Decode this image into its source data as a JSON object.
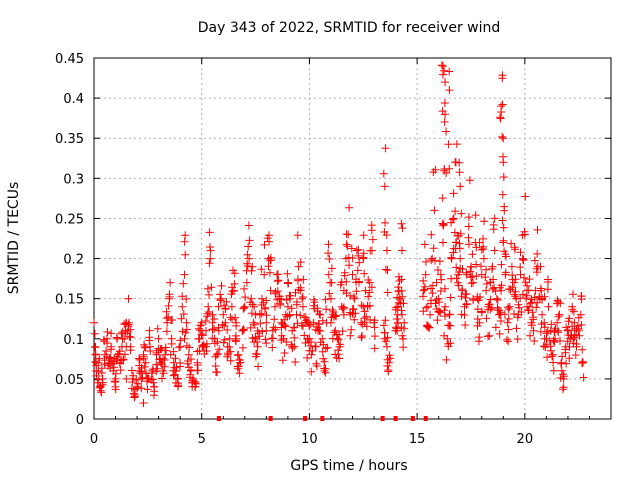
{
  "chart_data": {
    "type": "scatter",
    "title": "Day 343 of 2022, SRMTID for receiver wind",
    "xlabel": "GPS time / hours",
    "ylabel": "SRMTID / TECUs",
    "xlim": [
      0,
      24
    ],
    "ylim": [
      0,
      0.45
    ],
    "xticks": [
      0,
      5,
      10,
      15,
      20
    ],
    "xtick_labels": [
      "0",
      "5",
      "10",
      "15",
      "20"
    ],
    "yticks": [
      0,
      0.05,
      0.1,
      0.15,
      0.2,
      0.25,
      0.3,
      0.35,
      0.4,
      0.45
    ],
    "ytick_labels": [
      "0",
      "0.05",
      "0.1",
      "0.15",
      "0.2",
      "0.25",
      "0.3",
      "0.35",
      "0.4",
      "0.45"
    ],
    "grid": true,
    "marker": "+",
    "color": "#ff0000",
    "series": [
      {
        "name": "SRMTID",
        "x": [
          0.0,
          0.1,
          0.2,
          0.3,
          0.4,
          0.5,
          0.6,
          0.7,
          0.8,
          0.9,
          1.0,
          1.1,
          1.2,
          1.3,
          1.4,
          1.5,
          1.6,
          1.7,
          1.8,
          1.9,
          2.0,
          2.1,
          2.2,
          2.3,
          2.4,
          2.5,
          2.6,
          2.7,
          2.8,
          2.9,
          3.0,
          3.1,
          3.2,
          3.3,
          3.4,
          3.5,
          3.6,
          3.7,
          3.8,
          3.9,
          4.0,
          4.1,
          4.2,
          4.3,
          4.4,
          4.5,
          4.6,
          4.7,
          4.8,
          4.9,
          5.0,
          5.1,
          5.2,
          5.3,
          5.4,
          5.5,
          5.6,
          5.7,
          5.8,
          5.9,
          6.0,
          6.1,
          6.2,
          6.3,
          6.4,
          6.5,
          6.6,
          6.7,
          6.8,
          6.9,
          7.0,
          7.1,
          7.2,
          7.3,
          7.4,
          7.5,
          7.6,
          7.7,
          7.8,
          7.9,
          8.0,
          8.1,
          8.2,
          8.3,
          8.4,
          8.5,
          8.6,
          8.7,
          8.8,
          8.9,
          9.0,
          9.1,
          9.2,
          9.3,
          9.4,
          9.5,
          9.6,
          9.7,
          9.8,
          9.9,
          10.0,
          10.1,
          10.2,
          10.3,
          10.4,
          10.5,
          10.6,
          10.7,
          10.8,
          10.9,
          11.0,
          11.1,
          11.2,
          11.3,
          11.4,
          11.5,
          11.6,
          11.7,
          11.8,
          11.9,
          12.0,
          12.1,
          12.2,
          12.3,
          12.4,
          12.5,
          12.6,
          12.7,
          12.8,
          12.9,
          13.0,
          13.5,
          13.6,
          13.7,
          14.0,
          14.1,
          14.2,
          14.3,
          14.4,
          15.3,
          15.4,
          15.5,
          15.6,
          15.7,
          15.8,
          15.9,
          16.0,
          16.1,
          16.2,
          16.3,
          16.4,
          16.5,
          16.6,
          16.7,
          16.8,
          16.9,
          17.0,
          17.1,
          17.2,
          17.3,
          17.4,
          17.5,
          17.6,
          17.7,
          17.8,
          17.9,
          18.0,
          18.1,
          18.2,
          18.3,
          18.4,
          18.5,
          18.6,
          18.7,
          18.8,
          18.9,
          19.0,
          19.1,
          19.2,
          19.3,
          19.4,
          19.5,
          19.6,
          19.7,
          19.8,
          19.9,
          20.0,
          20.1,
          20.2,
          20.3,
          20.4,
          20.5,
          20.6,
          20.7,
          20.8,
          20.9,
          21.0,
          21.1,
          21.2,
          21.3,
          21.4,
          21.5,
          21.6,
          21.7,
          21.8,
          21.9,
          22.0,
          22.1,
          22.2,
          22.3,
          22.4,
          22.5,
          22.6,
          22.7,
          16.2,
          16.3,
          16.8,
          17.0,
          18.9,
          19.0,
          19.0,
          16.5,
          16.3,
          13.5,
          13.6,
          14.1,
          14.3,
          0.05,
          0.2,
          1.0,
          1.5,
          2.3,
          3.8,
          4.2,
          5.2,
          5.5,
          6.6,
          7.5,
          8.0,
          9.0,
          9.9,
          10.5,
          11.0,
          11.6,
          12.5,
          16.6,
          17.9,
          18.6,
          20.1,
          21.6,
          22.3
        ],
        "y": [
          0.12,
          0.07,
          0.06,
          0.04,
          0.05,
          0.08,
          0.1,
          0.07,
          0.09,
          0.06,
          0.05,
          0.08,
          0.07,
          0.09,
          0.1,
          0.12,
          0.15,
          0.09,
          0.05,
          0.03,
          0.04,
          0.06,
          0.05,
          0.08,
          0.07,
          0.05,
          0.09,
          0.06,
          0.04,
          0.08,
          0.1,
          0.07,
          0.06,
          0.08,
          0.12,
          0.15,
          0.1,
          0.07,
          0.06,
          0.05,
          0.09,
          0.14,
          0.18,
          0.12,
          0.08,
          0.06,
          0.05,
          0.04,
          0.07,
          0.1,
          0.12,
          0.09,
          0.11,
          0.14,
          0.2,
          0.13,
          0.1,
          0.08,
          0.11,
          0.15,
          0.13,
          0.12,
          0.09,
          0.1,
          0.14,
          0.16,
          0.12,
          0.08,
          0.07,
          0.11,
          0.14,
          0.17,
          0.2,
          0.15,
          0.12,
          0.1,
          0.09,
          0.13,
          0.15,
          0.18,
          0.12,
          0.2,
          0.16,
          0.11,
          0.14,
          0.18,
          0.15,
          0.12,
          0.1,
          0.13,
          0.17,
          0.15,
          0.11,
          0.09,
          0.13,
          0.19,
          0.16,
          0.14,
          0.12,
          0.1,
          0.1,
          0.08,
          0.12,
          0.09,
          0.11,
          0.13,
          0.1,
          0.06,
          0.12,
          0.18,
          0.15,
          0.13,
          0.11,
          0.1,
          0.09,
          0.14,
          0.16,
          0.2,
          0.23,
          0.13,
          0.18,
          0.15,
          0.21,
          0.17,
          0.12,
          0.2,
          0.16,
          0.14,
          0.17,
          0.21,
          0.12,
          0.1,
          0.09,
          0.07,
          0.11,
          0.14,
          0.15,
          0.13,
          0.12,
          0.16,
          0.18,
          0.14,
          0.13,
          0.2,
          0.26,
          0.17,
          0.15,
          0.18,
          0.22,
          0.14,
          0.1,
          0.13,
          0.2,
          0.25,
          0.22,
          0.18,
          0.2,
          0.16,
          0.14,
          0.18,
          0.24,
          0.19,
          0.17,
          0.22,
          0.15,
          0.12,
          0.18,
          0.2,
          0.16,
          0.14,
          0.17,
          0.19,
          0.21,
          0.15,
          0.13,
          0.16,
          0.22,
          0.18,
          0.12,
          0.14,
          0.19,
          0.17,
          0.15,
          0.13,
          0.18,
          0.2,
          0.23,
          0.16,
          0.14,
          0.12,
          0.11,
          0.16,
          0.19,
          0.15,
          0.13,
          0.12,
          0.1,
          0.14,
          0.11,
          0.08,
          0.1,
          0.12,
          0.13,
          0.07,
          0.05,
          0.09,
          0.11,
          0.1,
          0.14,
          0.12,
          0.09,
          0.11,
          0.13,
          0.07,
          0.44,
          0.38,
          0.32,
          0.29,
          0.39,
          0.35,
          0.32,
          0.41,
          0.42,
          0.29,
          0.21,
          0.13,
          0.21,
          0.09,
          0.07,
          0.04,
          0.05,
          0.02,
          0.06,
          0.1,
          0.09,
          0.12,
          0.1,
          0.13,
          0.11,
          0.14,
          0.12,
          0.11,
          0.12,
          0.13,
          0.14,
          0.2,
          0.22,
          0.25,
          0.14,
          0.13,
          0.11
        ],
        "line_y": []
      }
    ],
    "outage_ticks_x": [
      5.8,
      8.2,
      9.8,
      10.6,
      13.4,
      14.0,
      14.8,
      15.4
    ]
  }
}
